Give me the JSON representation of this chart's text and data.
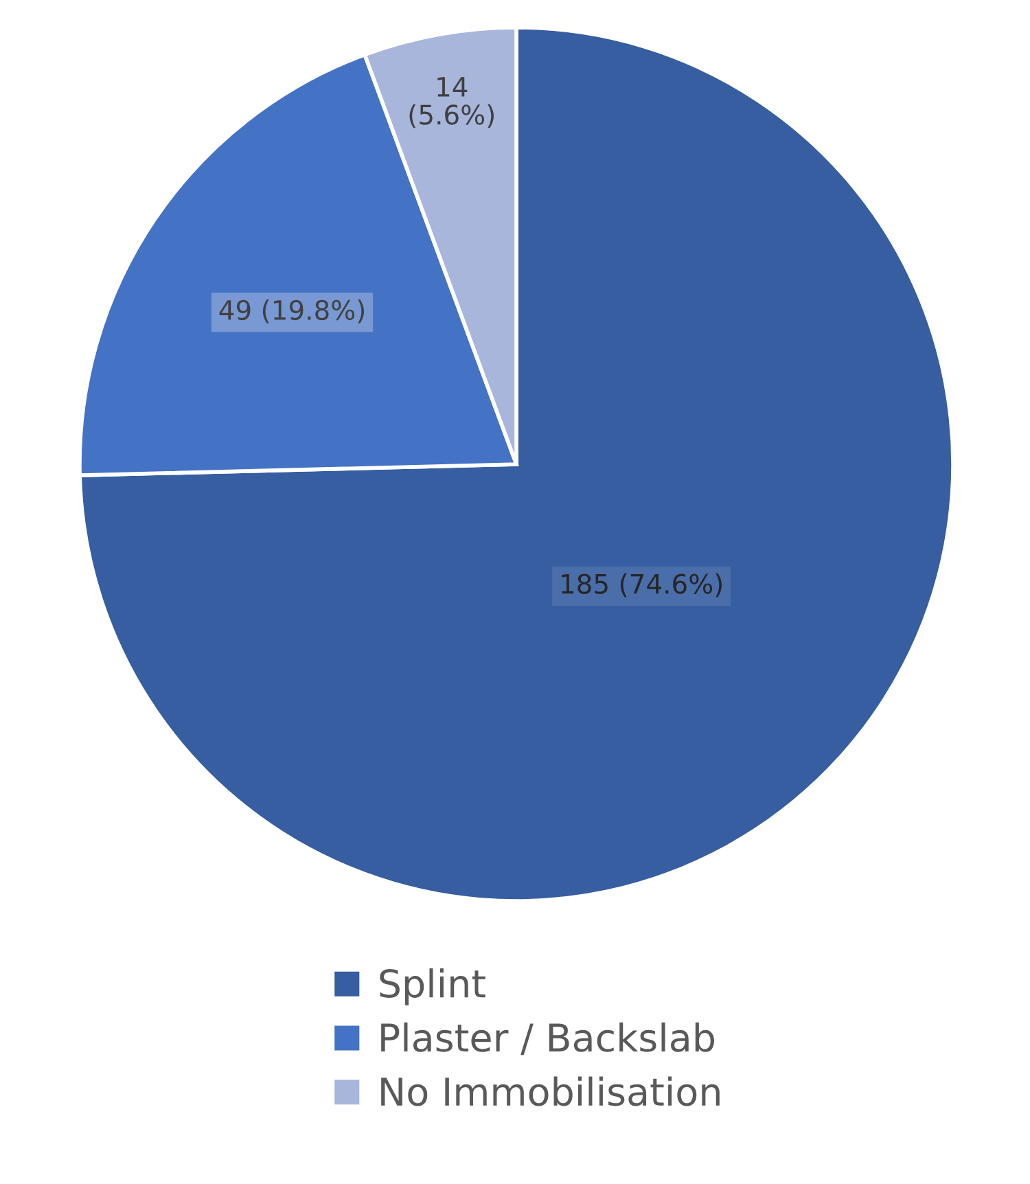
{
  "chart_data": {
    "type": "pie",
    "categories": [
      "Splint",
      "Plaster / Backslab",
      "No Immobilisation"
    ],
    "values": [
      185,
      49,
      14
    ],
    "colors": [
      "#365EA0",
      "#4472C4",
      "#A8B6DC"
    ],
    "value_labels": [
      "185 (74.6%)",
      "49 (19.8%)",
      "14 (5.6%)"
    ],
    "legend": "bottom"
  }
}
